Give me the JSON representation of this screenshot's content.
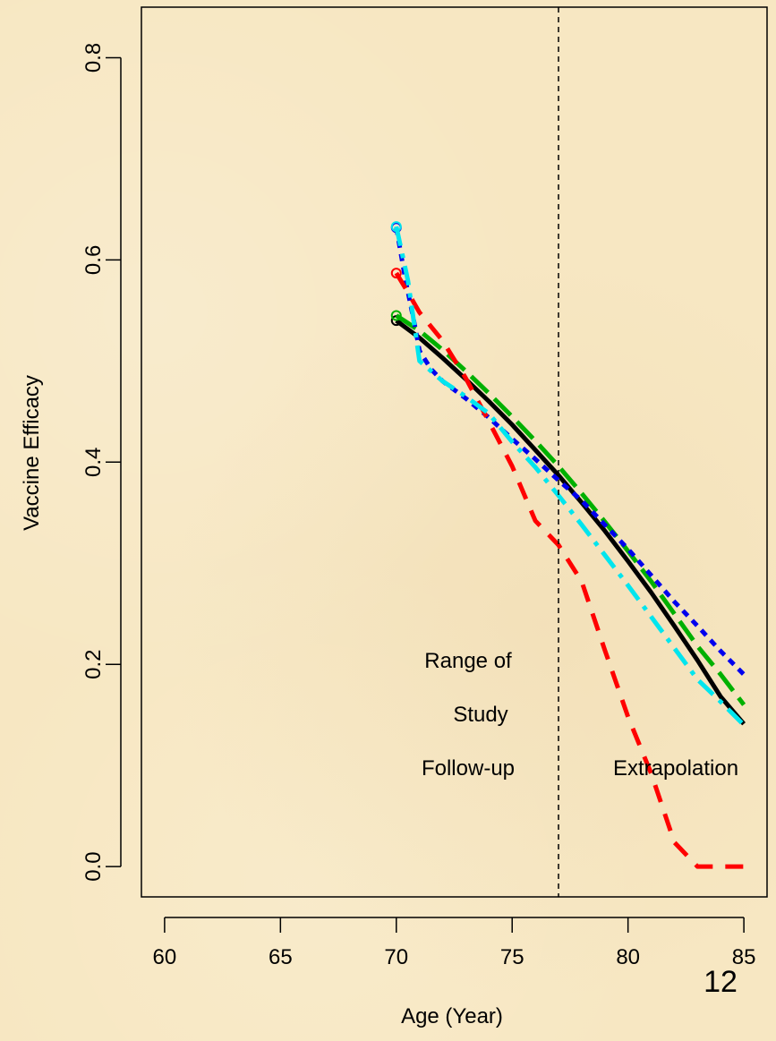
{
  "chart_data": {
    "type": "line",
    "xlabel": "Age (Year)",
    "ylabel": "Vaccine Efficacy",
    "xlim": [
      59,
      86
    ],
    "ylim": [
      -0.03,
      0.85
    ],
    "x_ticks": [
      "60",
      "65",
      "70",
      "75",
      "80",
      "85"
    ],
    "y_ticks": [
      "0.0",
      "0.2",
      "0.4",
      "0.6",
      "0.8"
    ],
    "reference_line": {
      "x": 77,
      "style": "dashed",
      "color": "#000000"
    },
    "annotations": {
      "left": [
        "Range of",
        "Study",
        "Follow-up"
      ],
      "right": "Extrapolation"
    },
    "grid": false,
    "legend": "none",
    "series": [
      {
        "color": "#000000",
        "style": "solid",
        "marker_start": true,
        "x": [
          70,
          71,
          72,
          73,
          74,
          75,
          76,
          77,
          78,
          79,
          80,
          81,
          82,
          83,
          84,
          85
        ],
        "y": [
          0.54,
          0.523,
          0.503,
          0.482,
          0.46,
          0.437,
          0.412,
          0.387,
          0.36,
          0.332,
          0.302,
          0.271,
          0.238,
          0.204,
          0.168,
          0.141
        ]
      },
      {
        "color": "#00b000",
        "style": "longdash",
        "marker_start": true,
        "x": [
          70,
          71,
          72,
          73,
          74,
          75,
          76,
          77,
          78,
          79,
          80,
          81,
          82,
          83,
          84,
          85
        ],
        "y": [
          0.545,
          0.53,
          0.511,
          0.49,
          0.468,
          0.445,
          0.421,
          0.396,
          0.369,
          0.341,
          0.312,
          0.282,
          0.25,
          0.218,
          0.19,
          0.16
        ]
      },
      {
        "color": "#0000ee",
        "style": "dotted",
        "marker_start": true,
        "x": [
          70,
          70.4,
          70.8,
          71,
          71.5,
          72,
          73,
          74,
          75,
          76,
          77,
          78,
          79,
          80,
          81,
          82,
          83,
          84,
          85
        ],
        "y": [
          0.632,
          0.58,
          0.535,
          0.51,
          0.492,
          0.48,
          0.463,
          0.444,
          0.423,
          0.403,
          0.382,
          0.362,
          0.338,
          0.314,
          0.288,
          0.262,
          0.238,
          0.213,
          0.19
        ]
      },
      {
        "color": "#ff0000",
        "style": "dashed",
        "marker_start": true,
        "x": [
          70,
          70.5,
          71,
          72,
          73,
          74,
          75,
          76,
          77,
          78,
          79,
          80,
          81,
          82,
          83,
          84,
          85
        ],
        "y": [
          0.587,
          0.568,
          0.548,
          0.52,
          0.483,
          0.44,
          0.396,
          0.342,
          0.318,
          0.282,
          0.214,
          0.148,
          0.092,
          0.024,
          0.0,
          0.0,
          0.0
        ]
      },
      {
        "color": "#00e5ee",
        "style": "dotdash",
        "marker_start": true,
        "x": [
          70,
          70.5,
          71,
          72,
          73,
          74,
          75,
          76,
          77,
          78,
          79,
          80,
          81,
          82,
          83,
          84,
          85
        ],
        "y": [
          0.633,
          0.58,
          0.5,
          0.48,
          0.465,
          0.448,
          0.42,
          0.395,
          0.367,
          0.338,
          0.308,
          0.278,
          0.247,
          0.216,
          0.185,
          0.163,
          0.14
        ]
      }
    ]
  },
  "page_number": "12"
}
